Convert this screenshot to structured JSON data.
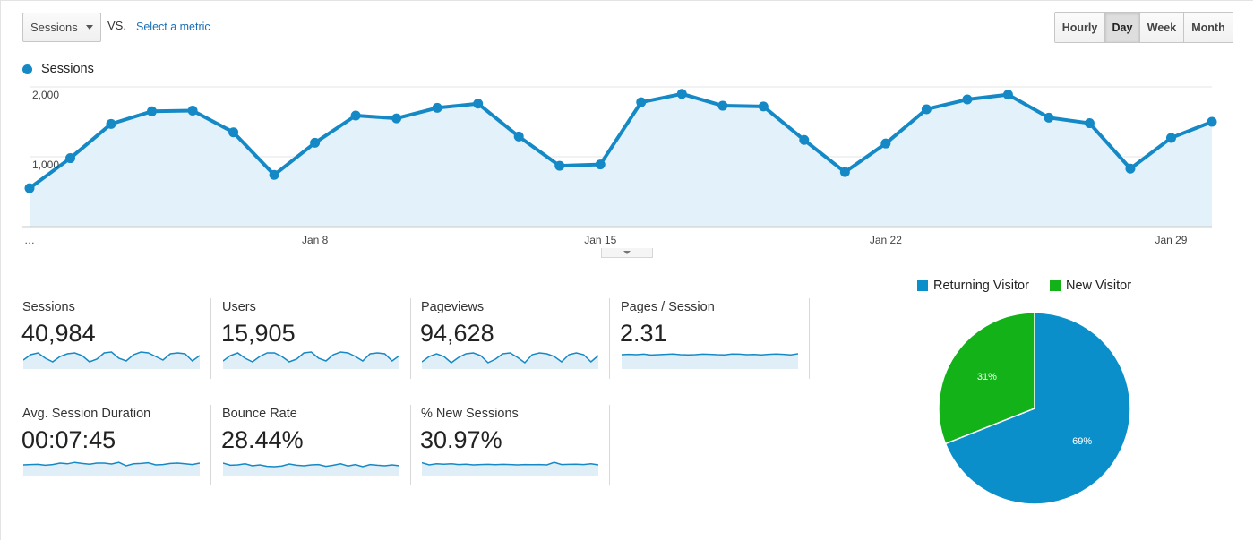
{
  "controls": {
    "metric_select": "Sessions",
    "vs": "VS.",
    "select_metric": "Select a metric",
    "granularity": [
      {
        "label": "Hourly",
        "active": false
      },
      {
        "label": "Day",
        "active": true
      },
      {
        "label": "Week",
        "active": false
      },
      {
        "label": "Month",
        "active": false
      }
    ]
  },
  "colors": {
    "primary": "#1589c6",
    "area_fill": "#e3f2fa",
    "returning": "#0b8fca",
    "new": "#12b218",
    "spark_fill": "#e0eef8"
  },
  "chart_data": [
    {
      "type": "area",
      "series": [
        {
          "name": "Sessions",
          "values": [
            550,
            980,
            1470,
            1650,
            1660,
            1350,
            740,
            1200,
            1590,
            1550,
            1700,
            1760,
            1290,
            870,
            890,
            1780,
            1900,
            1730,
            1720,
            1240,
            780,
            1190,
            1680,
            1820,
            1890,
            1560,
            1480,
            830,
            1270,
            1500
          ]
        }
      ],
      "x_tick_labels": [
        "…",
        "Jan 8",
        "Jan 15",
        "Jan 22",
        "Jan 29"
      ],
      "y_tick_labels": [
        "1,000",
        "2,000"
      ],
      "ylim": [
        0,
        2000
      ],
      "grid": true,
      "legend": "top-left"
    },
    {
      "type": "pie",
      "slices": [
        {
          "label": "Returning Visitor",
          "value": 69,
          "text": "69%"
        },
        {
          "label": "New Visitor",
          "value": 31,
          "text": "31%"
        }
      ],
      "legend": "top"
    }
  ],
  "metrics": [
    {
      "label": "Sessions",
      "value": "40,984",
      "spark": [
        0.5,
        0.8,
        0.9,
        0.6,
        0.4,
        0.7,
        0.85,
        0.9,
        0.75,
        0.4,
        0.55,
        0.9,
        0.95,
        0.6,
        0.45,
        0.8,
        0.95,
        0.9,
        0.7,
        0.5,
        0.85,
        0.9,
        0.85,
        0.45,
        0.75
      ]
    },
    {
      "label": "Users",
      "value": "15,905",
      "spark": [
        0.45,
        0.75,
        0.9,
        0.6,
        0.4,
        0.7,
        0.9,
        0.9,
        0.7,
        0.4,
        0.55,
        0.9,
        0.95,
        0.6,
        0.45,
        0.8,
        0.95,
        0.9,
        0.7,
        0.45,
        0.85,
        0.9,
        0.85,
        0.45,
        0.75
      ]
    },
    {
      "label": "Pageviews",
      "value": "94,628",
      "spark": [
        0.4,
        0.7,
        0.85,
        0.7,
        0.35,
        0.65,
        0.85,
        0.9,
        0.75,
        0.35,
        0.55,
        0.85,
        0.9,
        0.65,
        0.35,
        0.8,
        0.9,
        0.85,
        0.7,
        0.4,
        0.8,
        0.9,
        0.8,
        0.4,
        0.75
      ]
    },
    {
      "label": "Pages / Session",
      "value": "2.31",
      "spark": [
        0.8,
        0.82,
        0.8,
        0.83,
        0.78,
        0.8,
        0.82,
        0.84,
        0.8,
        0.79,
        0.8,
        0.83,
        0.82,
        0.8,
        0.79,
        0.84,
        0.83,
        0.8,
        0.81,
        0.79,
        0.82,
        0.84,
        0.82,
        0.79,
        0.85
      ]
    },
    {
      "label": "Avg. Session Duration",
      "value": "00:07:45",
      "spark": [
        0.6,
        0.62,
        0.63,
        0.58,
        0.62,
        0.7,
        0.66,
        0.74,
        0.68,
        0.64,
        0.7,
        0.7,
        0.65,
        0.74,
        0.55,
        0.66,
        0.68,
        0.72,
        0.6,
        0.62,
        0.68,
        0.7,
        0.66,
        0.62,
        0.7
      ]
    },
    {
      "label": "Bounce Rate",
      "value": "28.44%",
      "spark": [
        0.7,
        0.58,
        0.6,
        0.66,
        0.55,
        0.6,
        0.52,
        0.5,
        0.54,
        0.65,
        0.58,
        0.55,
        0.6,
        0.62,
        0.52,
        0.58,
        0.66,
        0.54,
        0.62,
        0.5,
        0.62,
        0.58,
        0.55,
        0.6,
        0.55
      ]
    },
    {
      "label": "% New Sessions",
      "value": "30.97%",
      "spark": [
        0.72,
        0.6,
        0.66,
        0.64,
        0.66,
        0.62,
        0.64,
        0.6,
        0.62,
        0.63,
        0.61,
        0.63,
        0.62,
        0.6,
        0.62,
        0.61,
        0.62,
        0.6,
        0.74,
        0.62,
        0.63,
        0.64,
        0.62,
        0.66,
        0.6
      ]
    }
  ]
}
